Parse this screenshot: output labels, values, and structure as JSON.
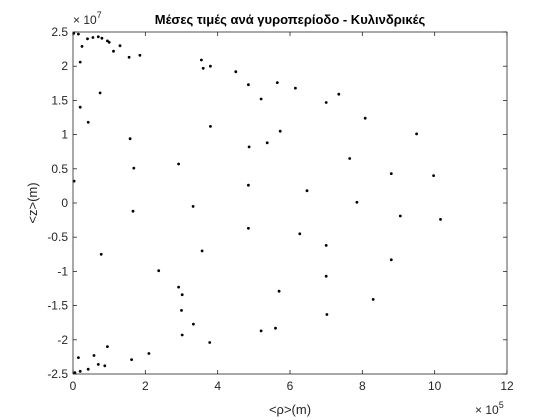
{
  "chart_data": {
    "type": "scatter",
    "title": "Μέσες τιμές ανά γυροπερίοδο - Κυλινδρικές",
    "xlabel": "<ρ>(m)",
    "ylabel": "<z>(m)",
    "x_exponent": {
      "base": "× 10",
      "power": "5"
    },
    "y_exponent": {
      "base": "× 10",
      "power": "7"
    },
    "x_scale": 100000,
    "y_scale": 10000000,
    "xlim": [
      0,
      1200000
    ],
    "ylim": [
      -25000000,
      25000000
    ],
    "x_ticks": [
      0,
      200000,
      400000,
      600000,
      800000,
      1000000,
      1200000
    ],
    "x_tick_labels": [
      "0",
      "2",
      "4",
      "6",
      "8",
      "10",
      "12"
    ],
    "y_ticks": [
      -25000000,
      -20000000,
      -15000000,
      -10000000,
      -5000000,
      0,
      5000000,
      10000000,
      15000000,
      20000000,
      25000000
    ],
    "y_tick_labels": [
      "-2.5",
      "-2",
      "-1.5",
      "-1",
      "-0.5",
      "0",
      "0.5",
      "1",
      "1.5",
      "2",
      "2.5"
    ],
    "grid": false,
    "marker_color": "#000000",
    "series": [
      {
        "points": [
          [
            2000,
            24800000
          ],
          [
            15000,
            24700000
          ],
          [
            40000,
            24000000
          ],
          [
            55000,
            24200000
          ],
          [
            70000,
            24300000
          ],
          [
            80000,
            24100000
          ],
          [
            95000,
            23700000
          ],
          [
            100000,
            23500000
          ],
          [
            130000,
            23000000
          ],
          [
            112000,
            22200000
          ],
          [
            25000,
            22900000
          ],
          [
            185000,
            21600000
          ],
          [
            155000,
            21300000
          ],
          [
            20000,
            20600000
          ],
          [
            355000,
            20900000
          ],
          [
            360000,
            19700000
          ],
          [
            380000,
            20000000
          ],
          [
            450000,
            19200000
          ],
          [
            565000,
            17600000
          ],
          [
            485000,
            17300000
          ],
          [
            615000,
            16800000
          ],
          [
            520000,
            15200000
          ],
          [
            735000,
            15900000
          ],
          [
            700000,
            14700000
          ],
          [
            75000,
            16100000
          ],
          [
            20000,
            14000000
          ],
          [
            42000,
            11800000
          ],
          [
            380000,
            11200000
          ],
          [
            808000,
            12400000
          ],
          [
            950000,
            10100000
          ],
          [
            573000,
            10500000
          ],
          [
            158000,
            9400000
          ],
          [
            537000,
            8800000
          ],
          [
            487000,
            8200000
          ],
          [
            765000,
            6500000
          ],
          [
            168000,
            5100000
          ],
          [
            292000,
            5700000
          ],
          [
            880000,
            4300000
          ],
          [
            997000,
            4000000
          ],
          [
            3000,
            3200000
          ],
          [
            485000,
            2600000
          ],
          [
            647000,
            1800000
          ],
          [
            785000,
            100000
          ],
          [
            332000,
            -500000
          ],
          [
            905000,
            -1900000
          ],
          [
            1016000,
            -2400000
          ],
          [
            166000,
            -1200000
          ],
          [
            485000,
            -3700000
          ],
          [
            627000,
            -4500000
          ],
          [
            700000,
            -6200000
          ],
          [
            357000,
            -7000000
          ],
          [
            78000,
            -7500000
          ],
          [
            880000,
            -8300000
          ],
          [
            237000,
            -9900000
          ],
          [
            700000,
            -10700000
          ],
          [
            292000,
            -12300000
          ],
          [
            302000,
            -13400000
          ],
          [
            570000,
            -12900000
          ],
          [
            830000,
            -14100000
          ],
          [
            300000,
            -15700000
          ],
          [
            702000,
            -16300000
          ],
          [
            333000,
            -17700000
          ],
          [
            560000,
            -18300000
          ],
          [
            520000,
            -18700000
          ],
          [
            302000,
            -19300000
          ],
          [
            378000,
            -20400000
          ],
          [
            95000,
            -21000000
          ],
          [
            210000,
            -22000000
          ],
          [
            15000,
            -22600000
          ],
          [
            58000,
            -22300000
          ],
          [
            162000,
            -22900000
          ],
          [
            70000,
            -23600000
          ],
          [
            88000,
            -23800000
          ],
          [
            42000,
            -24300000
          ],
          [
            20000,
            -24600000
          ],
          [
            5000,
            -24800000
          ]
        ]
      }
    ]
  }
}
